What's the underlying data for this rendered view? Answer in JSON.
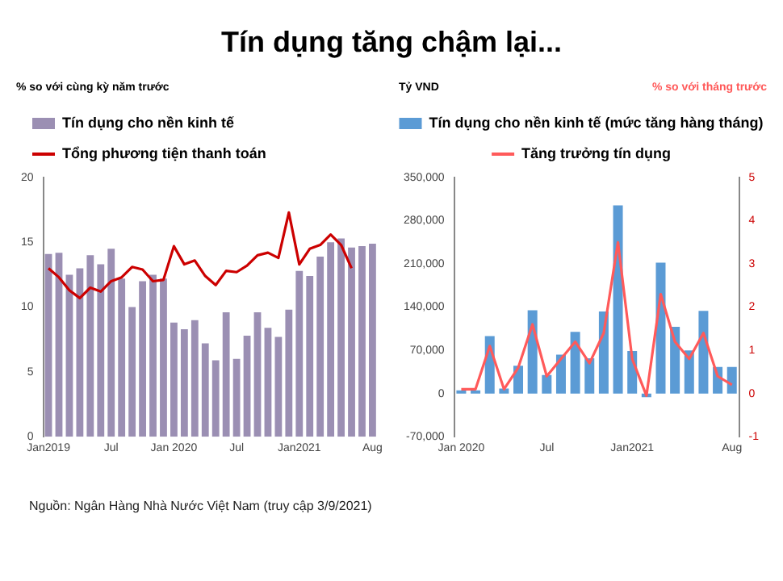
{
  "chart_data": [
    {
      "type": "bar",
      "title": "Tín dụng tăng chậm lại...",
      "ylabel": "% so với cùng kỳ năm trước",
      "annotations": [
        "Nguồn: Ngân Hàng Nhà Nước Việt Nam (truy cập 3/9/2021)"
      ],
      "categories": [
        "Jan2019",
        null,
        null,
        null,
        null,
        null,
        "Jul",
        null,
        null,
        null,
        null,
        null,
        "Jan 2020",
        null,
        null,
        null,
        null,
        null,
        "Jul",
        null,
        null,
        null,
        null,
        null,
        "Jan2021",
        null,
        null,
        null,
        null,
        null,
        null,
        "Aug"
      ],
      "series": [
        {
          "name": "Tín dụng cho nền kinh tế",
          "color": "#9b8fb3",
          "values": [
            14.1,
            14.2,
            12.5,
            13.0,
            14.0,
            13.3,
            14.5,
            12.2,
            10.0,
            12.0,
            12.5,
            12.2,
            8.8,
            8.3,
            9.0,
            7.2,
            5.9,
            9.6,
            6.0,
            7.8,
            9.6,
            8.4,
            7.7,
            9.8,
            12.8,
            12.4,
            13.9,
            15.0,
            15.3,
            14.6,
            14.7,
            14.9
          ]
        },
        {
          "name": "Tổng phương tiện thanh toán",
          "type": "line",
          "color": "#cc0000",
          "values": [
            13.0,
            12.3,
            11.3,
            10.7,
            11.5,
            11.2,
            12.0,
            12.3,
            13.1,
            12.9,
            12.0,
            12.1,
            14.7,
            13.3,
            13.6,
            12.4,
            11.7,
            12.8,
            12.7,
            13.2,
            14.0,
            14.2,
            13.8,
            17.3,
            13.3,
            14.5,
            14.8,
            15.6,
            14.8,
            13.0,
            null,
            null
          ]
        }
      ],
      "ylim": [
        0,
        20
      ],
      "yticks": [
        0,
        5,
        10,
        15,
        20
      ],
      "grid": false,
      "legend": "top left",
      "marker": "none"
    },
    {
      "type": "bar",
      "ylabel": "Tỷ VND",
      "y2label": "% so với tháng trước",
      "categories": [
        "Jan 2020",
        null,
        null,
        null,
        null,
        null,
        "Jul",
        null,
        null,
        null,
        null,
        null,
        "Jan2021",
        null,
        null,
        null,
        null,
        null,
        null,
        "Aug"
      ],
      "series": [
        {
          "name": "Tín dụng cho nền kinh tế (mức tăng hàng tháng)",
          "color": "#5b9bd5",
          "values": [
            5000,
            5000,
            93000,
            8000,
            45000,
            135000,
            30000,
            63000,
            100000,
            57000,
            133000,
            305000,
            69000,
            -6000,
            212000,
            108000,
            70000,
            134000,
            43000,
            43000
          ]
        },
        {
          "name": "Tăng trưởng tín dụng",
          "type": "line",
          "axis": "y2",
          "color": "#ff5a5a",
          "values": [
            0.1,
            0.1,
            1.1,
            0.1,
            0.6,
            1.6,
            0.4,
            0.8,
            1.2,
            0.7,
            1.4,
            3.5,
            0.8,
            -0.05,
            2.3,
            1.2,
            0.8,
            1.4,
            0.4,
            0.2
          ]
        }
      ],
      "ylim": [
        -70000,
        350000
      ],
      "yticks": [
        {
          "value": -70000,
          "label": "-70,000"
        },
        0,
        {
          "value": 70000,
          "label": "70,000"
        },
        {
          "value": 140000,
          "label": "140,000"
        },
        {
          "value": 210000,
          "label": "210,000"
        },
        {
          "value": 280000,
          "label": "280,000"
        },
        {
          "value": 350000,
          "label": "350,000"
        }
      ],
      "y2lim": [
        -1,
        5
      ],
      "y2ticks": [
        -1,
        0,
        1,
        2,
        3,
        4,
        5
      ],
      "grid": false,
      "legend": "top",
      "marker": "none"
    }
  ]
}
